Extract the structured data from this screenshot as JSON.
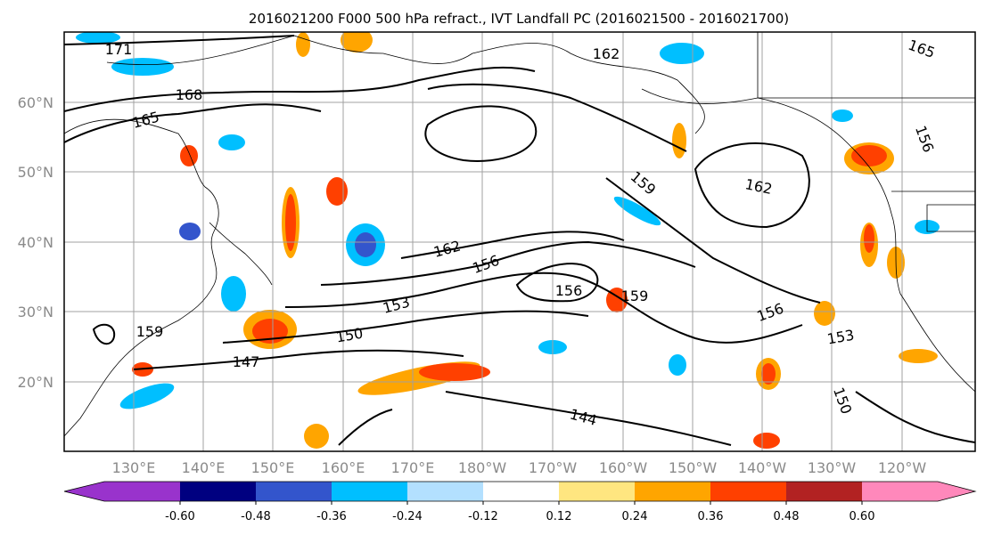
{
  "title": "2016021200 F000 500 hPa refract., IVT Landfall PC (2016021500 - 2016021700)",
  "lat_labels": [
    "60°N",
    "50°N",
    "40°N",
    "30°N",
    "20°N"
  ],
  "lon_labels": [
    "130°E",
    "140°E",
    "150°E",
    "160°E",
    "170°E",
    "180°W",
    "170°W",
    "160°W",
    "150°W",
    "140°W",
    "130°W",
    "120°W"
  ],
  "colorbar": {
    "colors": [
      "#9933cc",
      "#000080",
      "#3355cc",
      "#00bfff",
      "#b3e0ff",
      "#ffffff",
      "#ffe680",
      "#ffa500",
      "#ff4000",
      "#b22222",
      "#ff88bb"
    ],
    "tick_labels": [
      "-0.60",
      "-0.48",
      "-0.36",
      "-0.24",
      "-0.12",
      "0.12",
      "0.24",
      "0.36",
      "0.48",
      "0.60"
    ]
  },
  "contour_labels": [
    {
      "text": "171"
    },
    {
      "text": "168"
    },
    {
      "text": "165"
    },
    {
      "text": "162"
    },
    {
      "text": "162"
    },
    {
      "text": "162"
    },
    {
      "text": "159"
    },
    {
      "text": "159"
    },
    {
      "text": "159"
    },
    {
      "text": "156"
    },
    {
      "text": "156"
    },
    {
      "text": "156"
    },
    {
      "text": "153"
    },
    {
      "text": "153"
    },
    {
      "text": "150"
    },
    {
      "text": "147"
    },
    {
      "text": "144"
    },
    {
      "text": "165"
    },
    {
      "text": "156"
    },
    {
      "text": "150"
    }
  ],
  "map_data": {
    "projection": "cylindrical",
    "lat_range": [
      10,
      70
    ],
    "lon_range_east": [
      120,
      246
    ],
    "graticule_interval_deg": 10,
    "contour_variable": "500 hPa refractivity",
    "shading_variable": "IVT Landfall PC"
  }
}
